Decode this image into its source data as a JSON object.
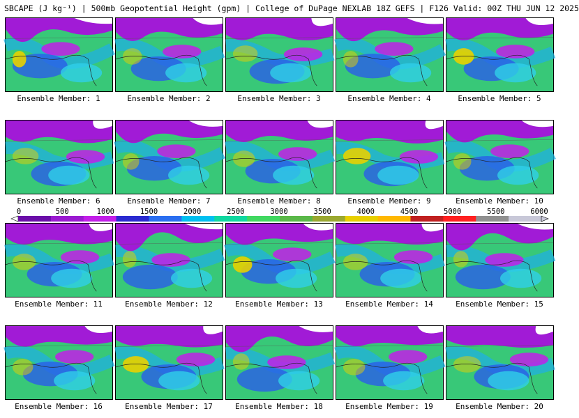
{
  "title": "SBCAPE (J kg⁻¹) | 500mb Geopotential Height (gpm) | College of DuPage NEXLAB 18Z GEFS | F126 Valid: 00Z THU JUN 12 2025",
  "colorbar": {
    "ticks": [
      "0",
      "500",
      "1000",
      "1500",
      "2000",
      "2500",
      "3000",
      "3500",
      "4000",
      "4500",
      "5000",
      "5500",
      "6000"
    ],
    "range": [
      0,
      6000
    ],
    "colors": [
      "#6a0ea8",
      "#9a1ad0",
      "#c21ee8",
      "#2a2ad0",
      "#2a6ef0",
      "#00c0f0",
      "#10d8a0",
      "#40d860",
      "#5ab848",
      "#9aa830",
      "#e8d000",
      "#ffb800",
      "#c02020",
      "#ff2020",
      "#909090",
      "#c8c8d8"
    ]
  },
  "panels": [
    {
      "label": "Ensemble Member: 1"
    },
    {
      "label": "Ensemble Member: 2"
    },
    {
      "label": "Ensemble Member: 3"
    },
    {
      "label": "Ensemble Member: 4"
    },
    {
      "label": "Ensemble Member: 5"
    },
    {
      "label": "Ensemble Member: 6"
    },
    {
      "label": "Ensemble Member: 7"
    },
    {
      "label": "Ensemble Member: 8"
    },
    {
      "label": "Ensemble Member: 9"
    },
    {
      "label": "Ensemble Member: 10"
    },
    {
      "label": "Ensemble Member: 11"
    },
    {
      "label": "Ensemble Member: 12"
    },
    {
      "label": "Ensemble Member: 13"
    },
    {
      "label": "Ensemble Member: 14"
    },
    {
      "label": "Ensemble Member: 15"
    },
    {
      "label": "Ensemble Member: 16"
    },
    {
      "label": "Ensemble Member: 17"
    },
    {
      "label": "Ensemble Member: 18"
    },
    {
      "label": "Ensemble Member: 19"
    },
    {
      "label": "Ensemble Member: 20"
    }
  ]
}
